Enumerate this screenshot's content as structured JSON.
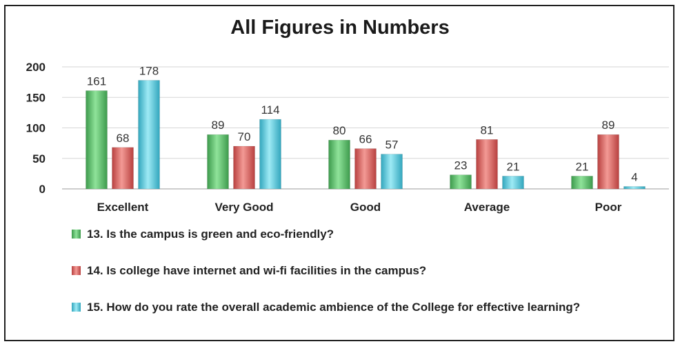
{
  "chart_data": {
    "type": "bar",
    "title": "All Figures in Numbers",
    "categories": [
      "Excellent",
      "Very Good",
      "Good",
      "Average",
      "Poor"
    ],
    "series": [
      {
        "name": "13.  Is the campus is green and eco-friendly?",
        "values": [
          161,
          89,
          80,
          23,
          21
        ],
        "color": "#5cc26b"
      },
      {
        "name": "14. Is college have internet and wi-fi facilities in the campus?",
        "values": [
          68,
          70,
          66,
          81,
          89
        ],
        "color": "#e06c6c"
      },
      {
        "name": "15.  How do you rate the overall academic ambience of the College for effective learning?",
        "values": [
          178,
          114,
          57,
          21,
          4
        ],
        "color": "#5fcde0"
      }
    ],
    "ylim": [
      0,
      200
    ],
    "yticks": [
      0,
      50,
      100,
      150,
      200
    ],
    "grid": true,
    "legend_position": "bottom"
  }
}
